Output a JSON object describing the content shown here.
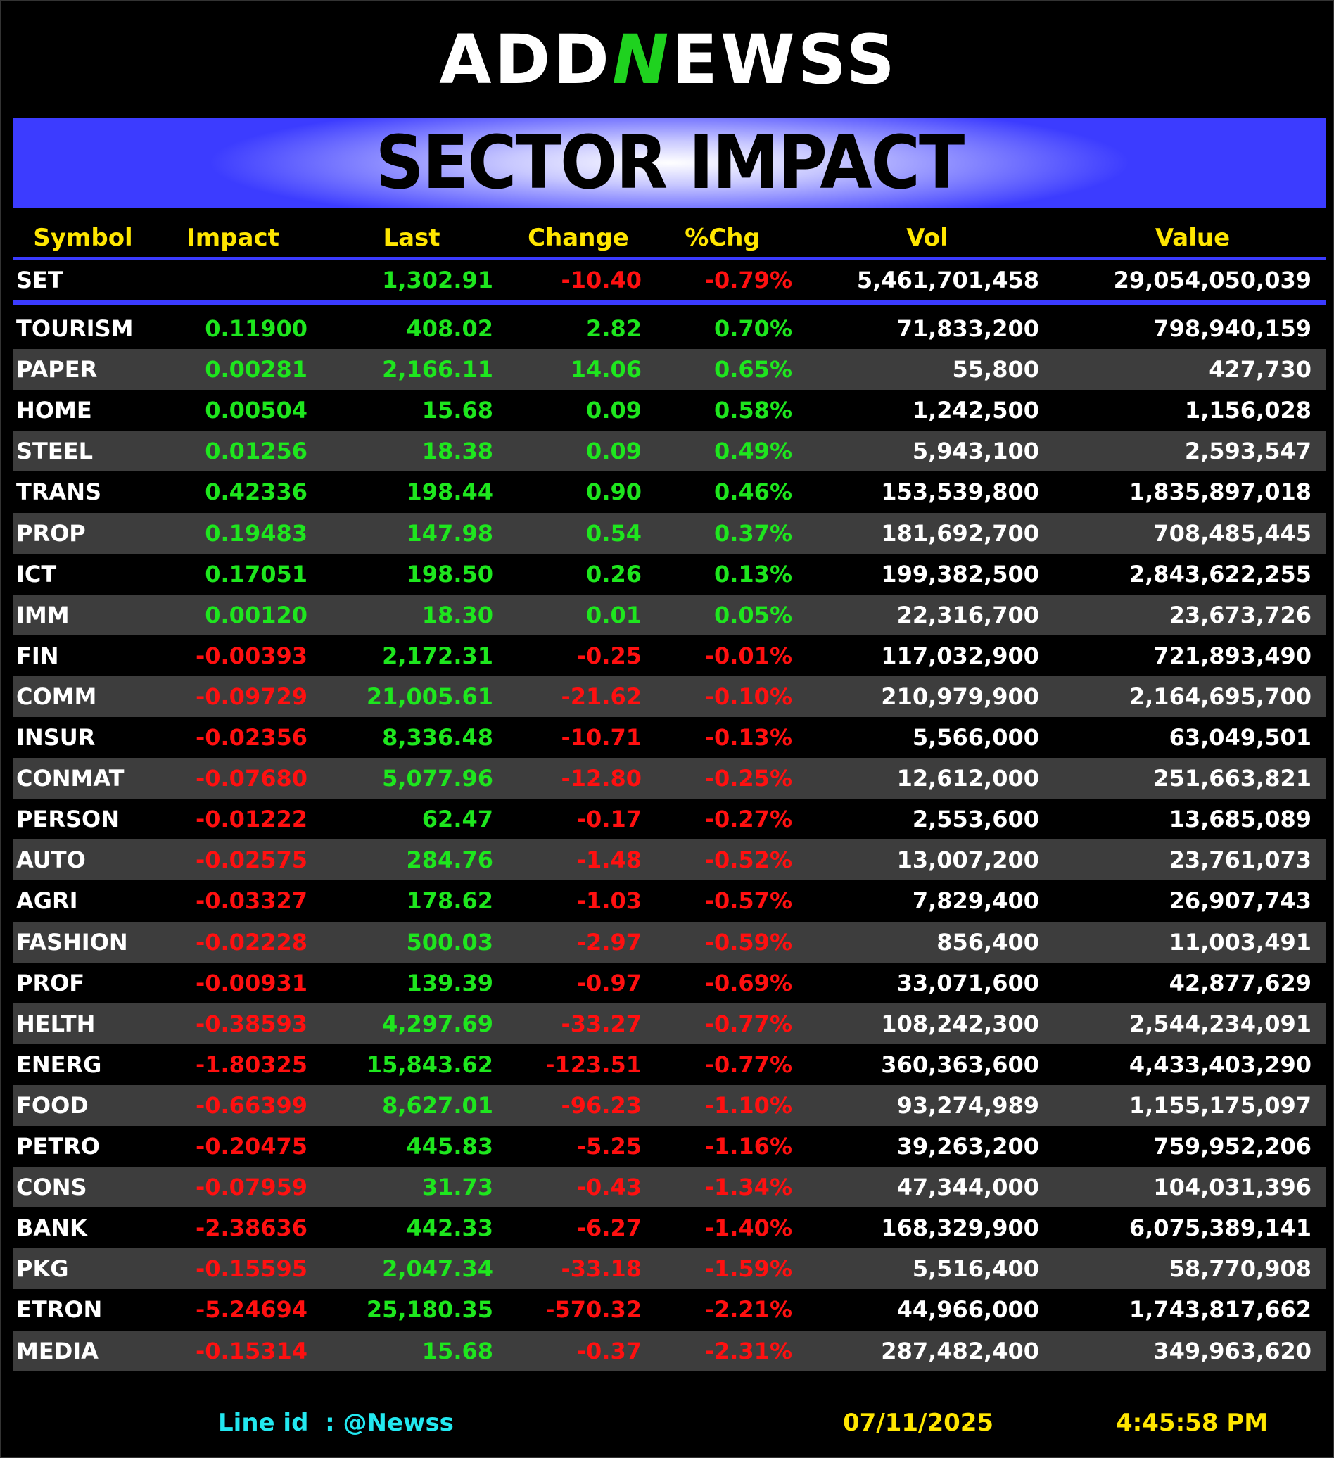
{
  "header": {
    "logo": [
      "ADD",
      "N",
      "EWSS"
    ],
    "title": "SECTOR IMPACT"
  },
  "table": {
    "columns": [
      "Symbol",
      "Impact",
      "Last",
      "Change",
      "%Chg",
      "Vol",
      "Value"
    ],
    "index_row": [
      "SET",
      "",
      "1,302.91",
      "-10.40",
      "-0.79%",
      "5,461,701,458",
      "29,054,050,039"
    ],
    "rows": [
      [
        "TOURISM",
        "0.11900",
        "408.02",
        "2.82",
        "0.70%",
        "71,833,200",
        "798,940,159"
      ],
      [
        "PAPER",
        "0.00281",
        "2,166.11",
        "14.06",
        "0.65%",
        "55,800",
        "427,730"
      ],
      [
        "HOME",
        "0.00504",
        "15.68",
        "0.09",
        "0.58%",
        "1,242,500",
        "1,156,028"
      ],
      [
        "STEEL",
        "0.01256",
        "18.38",
        "0.09",
        "0.49%",
        "5,943,100",
        "2,593,547"
      ],
      [
        "TRANS",
        "0.42336",
        "198.44",
        "0.90",
        "0.46%",
        "153,539,800",
        "1,835,897,018"
      ],
      [
        "PROP",
        "0.19483",
        "147.98",
        "0.54",
        "0.37%",
        "181,692,700",
        "708,485,445"
      ],
      [
        "ICT",
        "0.17051",
        "198.50",
        "0.26",
        "0.13%",
        "199,382,500",
        "2,843,622,255"
      ],
      [
        "IMM",
        "0.00120",
        "18.30",
        "0.01",
        "0.05%",
        "22,316,700",
        "23,673,726"
      ],
      [
        "FIN",
        "-0.00393",
        "2,172.31",
        "-0.25",
        "-0.01%",
        "117,032,900",
        "721,893,490"
      ],
      [
        "COMM",
        "-0.09729",
        "21,005.61",
        "-21.62",
        "-0.10%",
        "210,979,900",
        "2,164,695,700"
      ],
      [
        "INSUR",
        "-0.02356",
        "8,336.48",
        "-10.71",
        "-0.13%",
        "5,566,000",
        "63,049,501"
      ],
      [
        "CONMAT",
        "-0.07680",
        "5,077.96",
        "-12.80",
        "-0.25%",
        "12,612,000",
        "251,663,821"
      ],
      [
        "PERSON",
        "-0.01222",
        "62.47",
        "-0.17",
        "-0.27%",
        "2,553,600",
        "13,685,089"
      ],
      [
        "AUTO",
        "-0.02575",
        "284.76",
        "-1.48",
        "-0.52%",
        "13,007,200",
        "23,761,073"
      ],
      [
        "AGRI",
        "-0.03327",
        "178.62",
        "-1.03",
        "-0.57%",
        "7,829,400",
        "26,907,743"
      ],
      [
        "FASHION",
        "-0.02228",
        "500.03",
        "-2.97",
        "-0.59%",
        "856,400",
        "11,003,491"
      ],
      [
        "PROF",
        "-0.00931",
        "139.39",
        "-0.97",
        "-0.69%",
        "33,071,600",
        "42,877,629"
      ],
      [
        "HELTH",
        "-0.38593",
        "4,297.69",
        "-33.27",
        "-0.77%",
        "108,242,300",
        "2,544,234,091"
      ],
      [
        "ENERG",
        "-1.80325",
        "15,843.62",
        "-123.51",
        "-0.77%",
        "360,363,600",
        "4,433,403,290"
      ],
      [
        "FOOD",
        "-0.66399",
        "8,627.01",
        "-96.23",
        "-1.10%",
        "93,274,989",
        "1,155,175,097"
      ],
      [
        "PETRO",
        "-0.20475",
        "445.83",
        "-5.25",
        "-1.16%",
        "39,263,200",
        "759,952,206"
      ],
      [
        "CONS",
        "-0.07959",
        "31.73",
        "-0.43",
        "-1.34%",
        "47,344,000",
        "104,031,396"
      ],
      [
        "BANK",
        "-2.38636",
        "442.33",
        "-6.27",
        "-1.40%",
        "168,329,900",
        "6,075,389,141"
      ],
      [
        "PKG",
        "-0.15595",
        "2,047.34",
        "-33.18",
        "-1.59%",
        "5,516,400",
        "58,770,908"
      ],
      [
        "ETRON",
        "-5.24694",
        "25,180.35",
        "-570.32",
        "-2.21%",
        "44,966,000",
        "1,743,817,662"
      ],
      [
        "MEDIA",
        "-0.15314",
        "15.68",
        "-0.37",
        "-2.31%",
        "287,482,400",
        "349,963,620"
      ]
    ]
  },
  "footer": {
    "line_id": "Line id  : @Newss",
    "date": "07/11/2025",
    "time": "4:45:58 PM"
  }
}
